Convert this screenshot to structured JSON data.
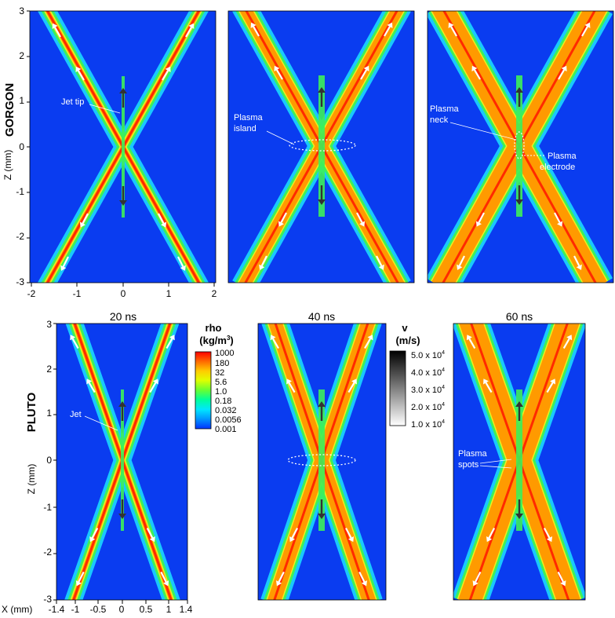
{
  "rows": {
    "top": {
      "label": "GORGON"
    },
    "bottom": {
      "label": "PLUTO"
    }
  },
  "times": [
    "20 ns",
    "40 ns",
    "60 ns"
  ],
  "axes": {
    "z_label": "Z (mm)",
    "x_label": "X (mm)",
    "top_z_ticks": [
      "3",
      "2",
      "1",
      "0",
      "-1",
      "-2",
      "-3"
    ],
    "top_x_ticks": [
      "-2",
      "-1",
      "0",
      "1",
      "2"
    ],
    "bottom_z_ticks": [
      "3",
      "2",
      "1",
      "0",
      "-1",
      "-2",
      "-3"
    ],
    "bottom_x_ticks": [
      "-1.4",
      "-1",
      "-0.5",
      "0",
      "0.5",
      "1",
      "1.4"
    ]
  },
  "annotations": {
    "jet_tip": "Jet tip",
    "plasma_island_1": "Plasma",
    "plasma_island_2": "island",
    "plasma_neck_1": "Plasma",
    "plasma_neck_2": "neck",
    "plasma_electrode_1": "Plasma",
    "plasma_electrode_2": "electrode",
    "jet": "Jet",
    "plasma_spots_1": "Plasma",
    "plasma_spots_2": "spots"
  },
  "rho_colorbar": {
    "title": "rho",
    "unit_prefix": "(kg/m",
    "unit_exp": "3",
    "unit_suffix": ")",
    "ticks": [
      "1000",
      "180",
      "32",
      "5.6",
      "1.0",
      "0.18",
      "0.032",
      "0.0056",
      "0.001"
    ],
    "colors": [
      "#ff0000",
      "#ff6600",
      "#ffcc00",
      "#e0ff00",
      "#66ff33",
      "#00ff99",
      "#00e6ff",
      "#0099ff",
      "#0033ff"
    ]
  },
  "v_colorbar": {
    "title": "v",
    "unit": "(m/s)",
    "ticks": [
      {
        "mant": "5.0",
        "exp": "4"
      },
      {
        "mant": "4.0",
        "exp": "4"
      },
      {
        "mant": "3.0",
        "exp": "4"
      },
      {
        "mant": "2.0",
        "exp": "4"
      },
      {
        "mant": "1.0",
        "exp": "4"
      }
    ]
  },
  "colors": {
    "background_field": "#0a3cf0",
    "halo": "#19c8ff",
    "green_band": "#3df05a",
    "yellow_band": "#f0ee1e",
    "core": "#ff2a00"
  }
}
